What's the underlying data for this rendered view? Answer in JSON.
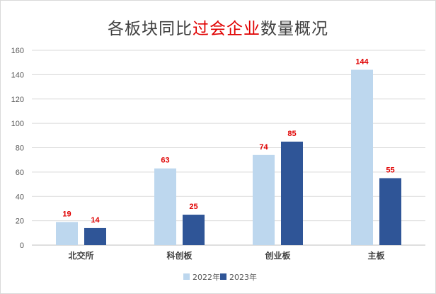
{
  "chart_data": {
    "type": "bar",
    "title": {
      "segments": [
        {
          "text": "各板块同比",
          "highlight": false
        },
        {
          "text": "过会企业",
          "highlight": true
        },
        {
          "text": "数量概况",
          "highlight": false
        }
      ]
    },
    "xlabel": "",
    "ylabel": "",
    "categories": [
      "北交所",
      "科创板",
      "创业板",
      "主板"
    ],
    "series": [
      {
        "name": "2022年",
        "color": "#bdd7ee",
        "values": [
          19,
          63,
          74,
          144
        ]
      },
      {
        "name": "2023年",
        "color": "#2f5597",
        "values": [
          14,
          25,
          85,
          55
        ]
      }
    ],
    "ylim": [
      0,
      160
    ],
    "yticks": [
      0,
      20,
      40,
      60,
      80,
      100,
      120,
      140,
      160
    ],
    "grid": true,
    "legend_position": "bottom-center",
    "data_label_color": "#e00000",
    "title_highlight_color": "#e00000"
  }
}
